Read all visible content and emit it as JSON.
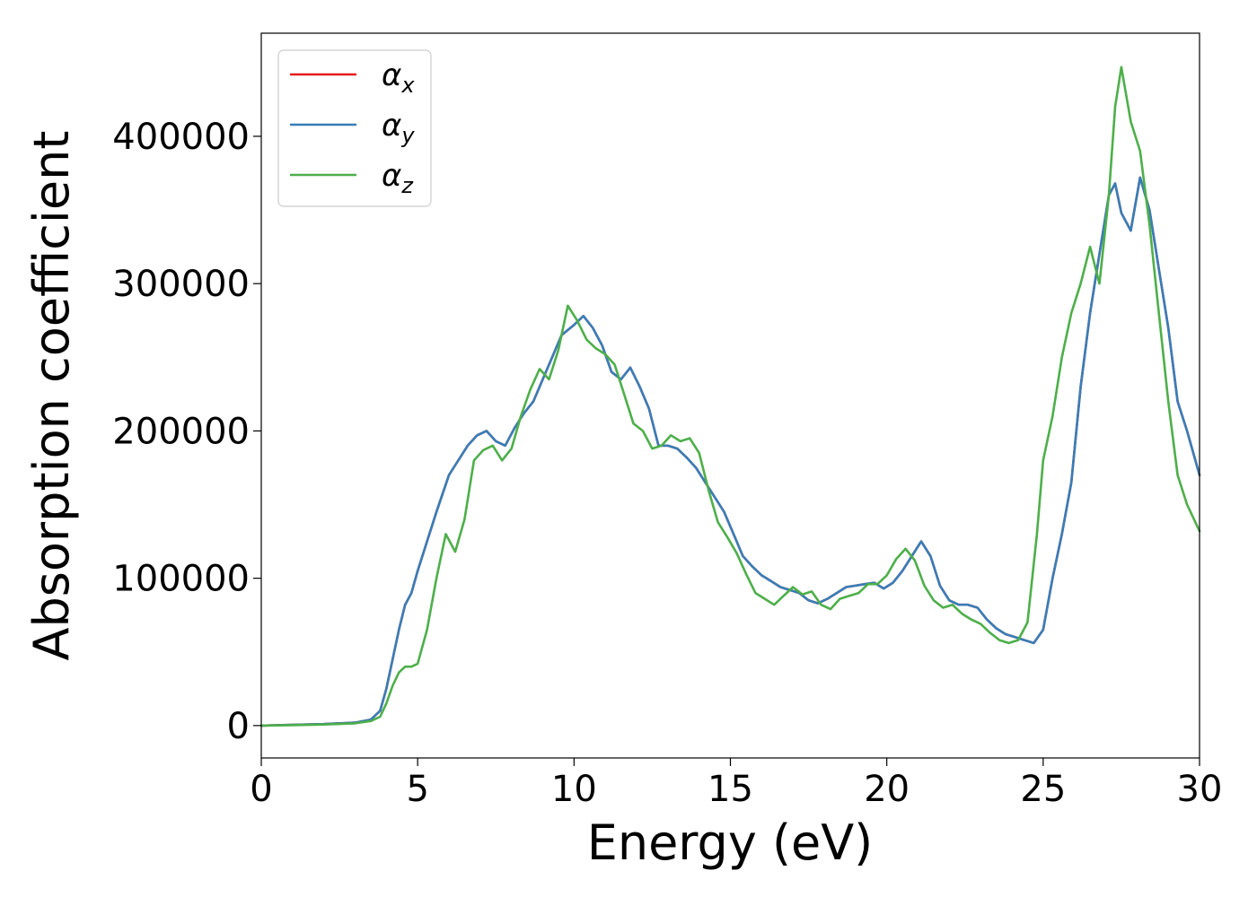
{
  "chart_data": {
    "type": "line",
    "title": "",
    "xlabel": "Energy (eV)",
    "ylabel": "Absorption coefficient",
    "xlim": [
      0,
      30
    ],
    "ylim": [
      -22000,
      470000
    ],
    "x_ticks": [
      0,
      5,
      10,
      15,
      20,
      25,
      30
    ],
    "x_tick_labels": [
      "0",
      "5",
      "10",
      "15",
      "20",
      "25",
      "30"
    ],
    "y_ticks": [
      0,
      100000,
      200000,
      300000,
      400000
    ],
    "y_tick_labels": [
      "0",
      "100000",
      "200000",
      "300000",
      "400000"
    ],
    "grid": false,
    "legend_position": "upper-left",
    "series": [
      {
        "name": "α_x",
        "name_base": "α",
        "name_sub": "x",
        "color": "#e41a1c",
        "x": [
          0,
          1,
          2,
          3,
          3.5,
          3.8,
          4.0,
          4.2,
          4.4,
          4.6,
          4.8,
          5.0,
          5.3,
          5.6,
          6.0,
          6.3,
          6.6,
          6.9,
          7.2,
          7.5,
          7.8,
          8.1,
          8.4,
          8.7,
          9.0,
          9.3,
          9.6,
          10.0,
          10.3,
          10.6,
          10.9,
          11.2,
          11.5,
          11.8,
          12.1,
          12.4,
          12.7,
          13.0,
          13.3,
          13.6,
          13.9,
          14.2,
          14.5,
          14.8,
          15.1,
          15.4,
          15.7,
          16.0,
          16.3,
          16.6,
          16.9,
          17.2,
          17.5,
          17.8,
          18.1,
          18.4,
          18.7,
          19.0,
          19.3,
          19.6,
          19.9,
          20.2,
          20.5,
          20.8,
          21.1,
          21.4,
          21.7,
          22.0,
          22.3,
          22.6,
          22.9,
          23.2,
          23.5,
          23.8,
          24.1,
          24.4,
          24.7,
          25.0,
          25.3,
          25.6,
          25.9,
          26.2,
          26.5,
          26.8,
          27.1,
          27.3,
          27.5,
          27.8,
          28.1,
          28.4,
          28.7,
          29.0,
          29.3,
          29.6,
          30.0
        ],
        "y": [
          0,
          500,
          1000,
          2000,
          4000,
          10000,
          25000,
          45000,
          65000,
          82000,
          90000,
          105000,
          125000,
          145000,
          170000,
          180000,
          190000,
          197000,
          200000,
          193000,
          190000,
          202000,
          212000,
          220000,
          235000,
          250000,
          265000,
          272000,
          278000,
          270000,
          258000,
          240000,
          235000,
          243000,
          230000,
          215000,
          190000,
          190000,
          188000,
          182000,
          175000,
          165000,
          155000,
          145000,
          130000,
          115000,
          108000,
          102000,
          98000,
          94000,
          92000,
          90000,
          85000,
          83000,
          86000,
          90000,
          94000,
          95000,
          96000,
          97000,
          93000,
          97000,
          105000,
          115000,
          125000,
          115000,
          95000,
          85000,
          82000,
          82000,
          80000,
          72000,
          66000,
          62000,
          60000,
          58000,
          56000,
          65000,
          100000,
          130000,
          165000,
          230000,
          280000,
          320000,
          360000,
          368000,
          348000,
          336000,
          372000,
          350000,
          310000,
          270000,
          220000,
          200000,
          170000
        ]
      },
      {
        "name": "α_y",
        "name_base": "α",
        "name_sub": "y",
        "color": "#377eb8",
        "x": [
          0,
          1,
          2,
          3,
          3.5,
          3.8,
          4.0,
          4.2,
          4.4,
          4.6,
          4.8,
          5.0,
          5.3,
          5.6,
          6.0,
          6.3,
          6.6,
          6.9,
          7.2,
          7.5,
          7.8,
          8.1,
          8.4,
          8.7,
          9.0,
          9.3,
          9.6,
          10.0,
          10.3,
          10.6,
          10.9,
          11.2,
          11.5,
          11.8,
          12.1,
          12.4,
          12.7,
          13.0,
          13.3,
          13.6,
          13.9,
          14.2,
          14.5,
          14.8,
          15.1,
          15.4,
          15.7,
          16.0,
          16.3,
          16.6,
          16.9,
          17.2,
          17.5,
          17.8,
          18.1,
          18.4,
          18.7,
          19.0,
          19.3,
          19.6,
          19.9,
          20.2,
          20.5,
          20.8,
          21.1,
          21.4,
          21.7,
          22.0,
          22.3,
          22.6,
          22.9,
          23.2,
          23.5,
          23.8,
          24.1,
          24.4,
          24.7,
          25.0,
          25.3,
          25.6,
          25.9,
          26.2,
          26.5,
          26.8,
          27.1,
          27.3,
          27.5,
          27.8,
          28.1,
          28.4,
          28.7,
          29.0,
          29.3,
          29.6,
          30.0
        ],
        "y": [
          0,
          500,
          1000,
          2000,
          4000,
          10000,
          25000,
          45000,
          65000,
          82000,
          90000,
          105000,
          125000,
          145000,
          170000,
          180000,
          190000,
          197000,
          200000,
          193000,
          190000,
          202000,
          212000,
          220000,
          235000,
          250000,
          265000,
          272000,
          278000,
          270000,
          258000,
          240000,
          235000,
          243000,
          230000,
          215000,
          190000,
          190000,
          188000,
          182000,
          175000,
          165000,
          155000,
          145000,
          130000,
          115000,
          108000,
          102000,
          98000,
          94000,
          92000,
          90000,
          85000,
          83000,
          86000,
          90000,
          94000,
          95000,
          96000,
          97000,
          93000,
          97000,
          105000,
          115000,
          125000,
          115000,
          95000,
          85000,
          82000,
          82000,
          80000,
          72000,
          66000,
          62000,
          60000,
          58000,
          56000,
          65000,
          100000,
          130000,
          165000,
          230000,
          280000,
          320000,
          360000,
          368000,
          348000,
          336000,
          372000,
          350000,
          310000,
          270000,
          220000,
          200000,
          170000
        ]
      },
      {
        "name": "α_z",
        "name_base": "α",
        "name_sub": "z",
        "color": "#4daf4a",
        "x": [
          0,
          1,
          2,
          3,
          3.5,
          3.8,
          4.0,
          4.2,
          4.4,
          4.6,
          4.8,
          5.0,
          5.3,
          5.6,
          5.9,
          6.2,
          6.5,
          6.8,
          7.1,
          7.4,
          7.7,
          8.0,
          8.3,
          8.6,
          8.9,
          9.2,
          9.5,
          9.8,
          10.1,
          10.4,
          10.7,
          11.0,
          11.3,
          11.6,
          11.9,
          12.2,
          12.5,
          12.8,
          13.1,
          13.4,
          13.7,
          14.0,
          14.3,
          14.6,
          14.9,
          15.2,
          15.5,
          15.8,
          16.1,
          16.4,
          16.7,
          17.0,
          17.3,
          17.6,
          17.9,
          18.2,
          18.5,
          18.8,
          19.1,
          19.4,
          19.7,
          20.0,
          20.3,
          20.6,
          20.9,
          21.2,
          21.5,
          21.8,
          22.1,
          22.4,
          22.7,
          23.0,
          23.3,
          23.6,
          23.9,
          24.2,
          24.5,
          24.8,
          25.0,
          25.3,
          25.6,
          25.9,
          26.2,
          26.5,
          26.8,
          27.1,
          27.3,
          27.5,
          27.8,
          28.1,
          28.4,
          28.7,
          29.0,
          29.3,
          29.6,
          30.0
        ],
        "y": [
          0,
          300,
          700,
          1500,
          3000,
          6000,
          15000,
          27000,
          36000,
          40000,
          40000,
          42000,
          65000,
          100000,
          130000,
          118000,
          140000,
          180000,
          187000,
          190000,
          180000,
          188000,
          210000,
          228000,
          242000,
          235000,
          255000,
          285000,
          275000,
          262000,
          256000,
          252000,
          245000,
          225000,
          205000,
          200000,
          188000,
          190000,
          197000,
          193000,
          195000,
          185000,
          160000,
          138000,
          128000,
          117000,
          103000,
          90000,
          86000,
          82000,
          88000,
          94000,
          89000,
          91000,
          82000,
          79000,
          86000,
          88000,
          90000,
          96000,
          96000,
          102000,
          113000,
          120000,
          112000,
          95000,
          85000,
          80000,
          82000,
          76000,
          72000,
          69000,
          63000,
          58000,
          56000,
          58000,
          70000,
          130000,
          180000,
          210000,
          250000,
          280000,
          300000,
          325000,
          300000,
          360000,
          420000,
          447000,
          410000,
          390000,
          340000,
          280000,
          220000,
          170000,
          150000,
          132000
        ]
      }
    ]
  }
}
